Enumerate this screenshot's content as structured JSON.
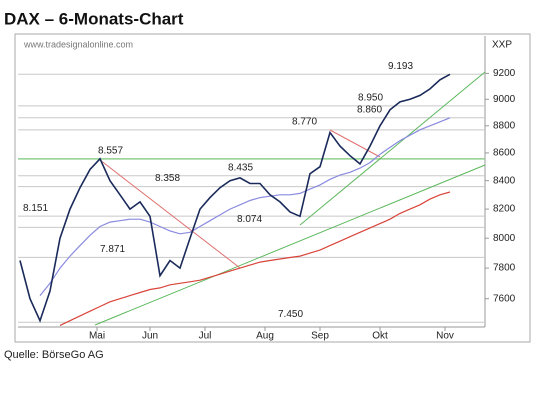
{
  "chart_data": {
    "type": "line",
    "title": "DAX – 6-Monats-Chart",
    "watermark": "www.tradesignalonline.com",
    "source": "Quelle: BörseGo AG",
    "y_axis_label": "XXP",
    "log_scale": true,
    "ylim": [
      7420,
      9480
    ],
    "yticks": [
      7600,
      7800,
      8000,
      8200,
      8400,
      8600,
      8800,
      9000,
      9200
    ],
    "month_labels": [
      "Mai",
      "Jun",
      "Jul",
      "Aug",
      "Sep",
      "Okt",
      "Nov"
    ],
    "series": [
      {
        "color": "#1a2a5a",
        "values": [
          7850,
          7600,
          7460,
          7650,
          8000,
          8200,
          8350,
          8480,
          8557,
          8400,
          8300,
          8200,
          8250,
          8150,
          7750,
          7850,
          7800,
          8000,
          8200,
          8280,
          8350,
          8400,
          8420,
          8380,
          8380,
          8300,
          8250,
          8180,
          8150,
          8450,
          8500,
          8750,
          8650,
          8580,
          8520,
          8650,
          8800,
          8920,
          8980,
          9000,
          9030,
          9080,
          9150,
          9193
        ]
      },
      {
        "color": "#8a8ae0",
        "values": [
          null,
          null,
          7620,
          7700,
          7800,
          7880,
          7950,
          8020,
          8080,
          8110,
          8120,
          8130,
          8130,
          8110,
          8080,
          8050,
          8030,
          8040,
          8080,
          8120,
          8160,
          8200,
          8230,
          8260,
          8280,
          8290,
          8300,
          8300,
          8310,
          8340,
          8370,
          8410,
          8440,
          8460,
          8490,
          8530,
          8590,
          8640,
          8690,
          8730,
          8770,
          8800,
          8830,
          8860
        ]
      },
      {
        "color": "#d9443a",
        "values": [
          null,
          null,
          null,
          null,
          7430,
          7460,
          7490,
          7520,
          7550,
          7580,
          7600,
          7620,
          7640,
          7660,
          7670,
          7690,
          7700,
          7710,
          7720,
          7740,
          7760,
          7780,
          7800,
          7820,
          7840,
          7850,
          7860,
          7870,
          7880,
          7900,
          7920,
          7950,
          7980,
          8010,
          8040,
          8070,
          8100,
          8130,
          8170,
          8200,
          8230,
          8270,
          8300,
          8320
        ]
      }
    ],
    "annotations": [
      {
        "value": 9193,
        "label": "9.193",
        "color": "#c8c8c8"
      },
      {
        "value": 8950,
        "label": "8.950",
        "color": "#c8c8c8"
      },
      {
        "value": 8860,
        "label": "8.860",
        "color": "#c8c8c8"
      },
      {
        "value": 8770,
        "label": "8.770",
        "color": "#c8c8c8"
      },
      {
        "value": 8557,
        "label": "8.557",
        "color": "#8fd08f"
      },
      {
        "value": 8435,
        "label": "8.435",
        "color": "#c8c8c8"
      },
      {
        "value": 8358,
        "label": "8.358",
        "color": "#c8c8c8"
      },
      {
        "value": 8151,
        "label": "8.151",
        "color": "#c8c8c8"
      },
      {
        "value": 8074,
        "label": "8.074",
        "color": "#c8c8c8"
      },
      {
        "value": 7871,
        "label": "7.871",
        "color": "#c8c8c8"
      },
      {
        "value": 7450,
        "label": "7.450",
        "color": "#c8c8c8"
      }
    ]
  }
}
